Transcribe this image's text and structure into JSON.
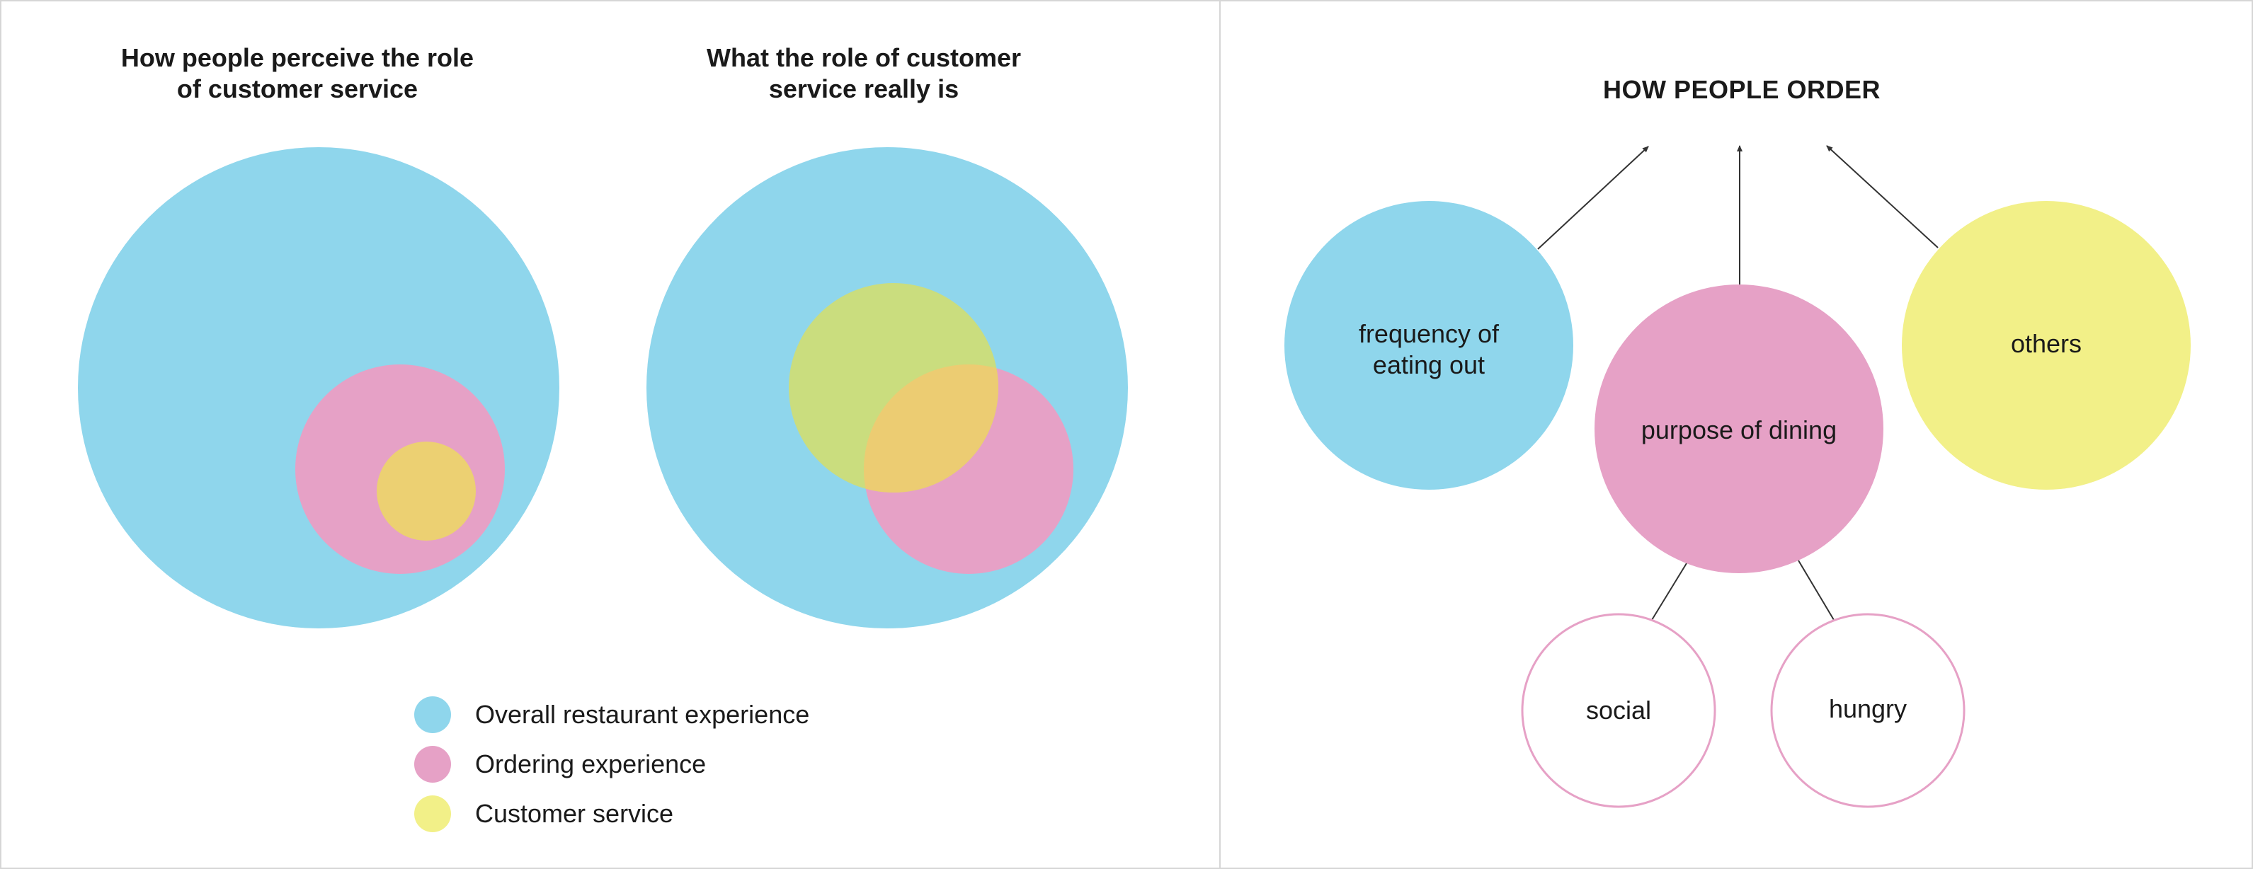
{
  "left_panel": {
    "title_1": "How people perceive the role\nof customer service",
    "title_2": "What the role of customer\nservice really is",
    "legend": [
      {
        "label": "Overall restaurant experience",
        "color": "#8fd6ec"
      },
      {
        "label": "Ordering experience",
        "color": "#e6a1c6"
      },
      {
        "label": "Customer service",
        "color": "#f2f088"
      }
    ]
  },
  "right_panel": {
    "title": "HOW PEOPLE ORDER",
    "nodes": [
      {
        "label": "frequency of\neating out",
        "color": "#8fd6ec"
      },
      {
        "label": "purpose of dining",
        "color": "#e6a1c6"
      },
      {
        "label": "others",
        "color": "#f2f088"
      },
      {
        "label": "social",
        "color": "#e6a1c6"
      },
      {
        "label": "hungry",
        "color": "#e6a1c6"
      }
    ]
  },
  "colors": {
    "blue": "#8fd6ec",
    "pink": "#e6a1c6",
    "yellow_overlap_small": "#ecd072",
    "green_overlap": "#cadd7e",
    "orange_overlap": "#eccc72",
    "line": "#333333"
  }
}
